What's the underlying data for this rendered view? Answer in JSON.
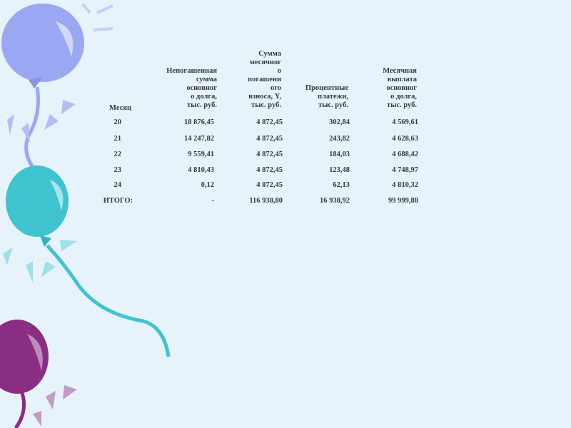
{
  "colors": {
    "background": "#e6f3fb",
    "balloon_blue": "#9aa7f2",
    "balloon_cyan": "#3fc3cf",
    "balloon_purple": "#8a2e84",
    "text": "#3a3a3a"
  },
  "table": {
    "headers": [
      [
        "Месяц"
      ],
      [
        "Непогашенная",
        "сумма",
        "основног",
        "о долга,",
        "тыс. руб."
      ],
      [
        "Сумма",
        "месячног",
        "о",
        "погашени",
        "ого",
        "взноса, Y,",
        "тыс. руб."
      ],
      [
        "Процентные",
        "платежи,",
        "тыс. руб."
      ],
      [
        "Месячная",
        "выплата",
        "основног",
        "о долга,",
        "тыс. руб."
      ]
    ],
    "rows": [
      [
        "20",
        "18 876,45",
        "4 872,45",
        "302,84",
        "4 569,61"
      ],
      [
        "21",
        "14 247,82",
        "4 872,45",
        "243,82",
        "4 628,63"
      ],
      [
        "22",
        "9 559,41",
        "4 872,45",
        "184,03",
        "4 688,42"
      ],
      [
        "23",
        "4 810,43",
        "4 872,45",
        "123,48",
        "4 748,97"
      ],
      [
        "24",
        "0,12",
        "4 872,45",
        "62,13",
        "4 810,32"
      ],
      [
        "ИТОГО:",
        "-",
        "116 938,80",
        "16 938,92",
        "99 999,88"
      ]
    ]
  }
}
